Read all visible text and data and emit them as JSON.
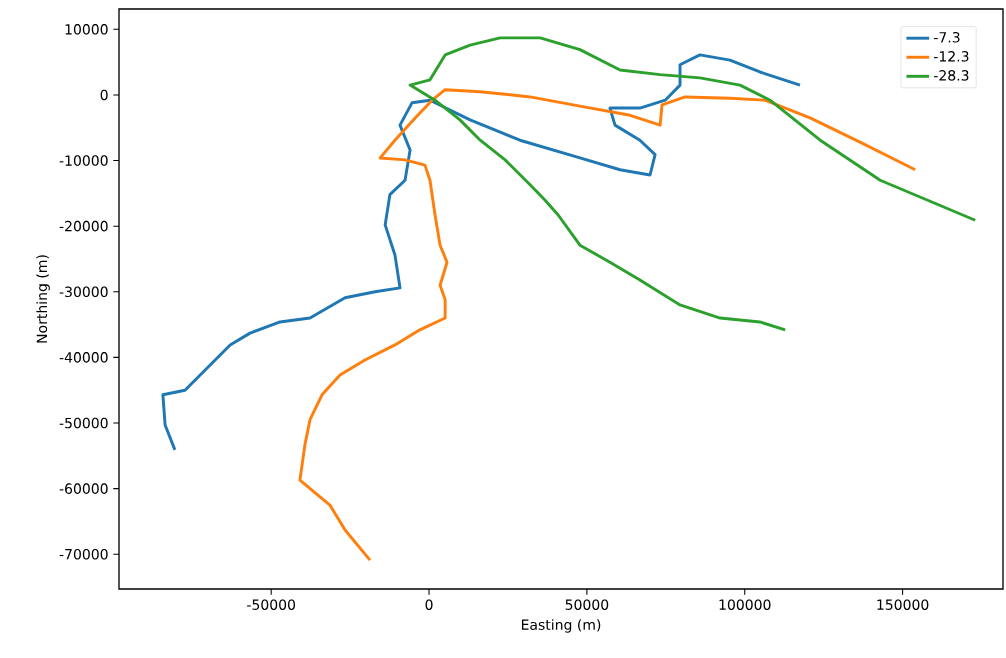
{
  "chart_data": {
    "type": "line",
    "xlabel": "Easting (m)",
    "ylabel": "Northing (m)",
    "xlim": [
      -98200,
      181800
    ],
    "ylim": [
      -75300,
      13100
    ],
    "xticks": [
      -50000,
      0,
      50000,
      100000,
      150000
    ],
    "yticks": [
      -70000,
      -60000,
      -50000,
      -40000,
      -30000,
      -20000,
      -10000,
      0,
      10000
    ],
    "grid": false,
    "legend": "top right",
    "marker": "none",
    "line_style": "solid",
    "series": [
      {
        "name": "-7.3",
        "color": "#1f77b4",
        "x": [
          -80500,
          -83600,
          -84300,
          -77300,
          -69400,
          -63000,
          -56700,
          -47200,
          -37700,
          -26600,
          -17100,
          -9200,
          -10800,
          -13900,
          -12400,
          -7600,
          -6000,
          -9200,
          -5400,
          300,
          13000,
          28800,
          47800,
          60500,
          70000,
          71600,
          66800,
          58900,
          57300,
          66800,
          74800,
          79500,
          79500,
          85800,
          95300,
          104800,
          117500
        ],
        "values": [
          -54100,
          -50300,
          -45700,
          -45000,
          -41200,
          -38100,
          -36300,
          -34600,
          -34000,
          -30900,
          -30000,
          -29400,
          -24400,
          -19800,
          -15200,
          -13000,
          -8400,
          -4600,
          -1200,
          -800,
          -3800,
          -6900,
          -9600,
          -11400,
          -12200,
          -9100,
          -6900,
          -4600,
          -2000,
          -2000,
          -800,
          1500,
          4600,
          6100,
          5300,
          3500,
          1500
        ]
      },
      {
        "name": "-12.3",
        "color": "#ff7f0e",
        "x": [
          -18700,
          -26600,
          -31400,
          -40900,
          -39300,
          -37700,
          -33900,
          -28200,
          -20300,
          -10800,
          -2900,
          5100,
          5100,
          3500,
          5700,
          3500,
          1900,
          300,
          -1300,
          -7600,
          -15500,
          -10800,
          -4400,
          1000,
          5100,
          16200,
          32000,
          47800,
          63700,
          73200,
          73800,
          81100,
          95300,
          106400,
          120700,
          136500,
          154000
        ],
        "values": [
          -70900,
          -66300,
          -62500,
          -58700,
          -53300,
          -49500,
          -45700,
          -42700,
          -40400,
          -38100,
          -35800,
          -34000,
          -31200,
          -29000,
          -25500,
          -22900,
          -18300,
          -13000,
          -10700,
          -9900,
          -9600,
          -6900,
          -3500,
          -800,
          800,
          500,
          -300,
          -1700,
          -3100,
          -4600,
          -1500,
          -300,
          -500,
          -800,
          -3500,
          -7200,
          -11400
        ]
      },
      {
        "name": "-28.3",
        "color": "#2ca02c",
        "x": [
          112800,
          104800,
          92200,
          79500,
          66800,
          57300,
          47800,
          40900,
          36700,
          32000,
          24100,
          16200,
          9800,
          1900,
          -6000,
          300,
          5100,
          13000,
          22500,
          35200,
          47800,
          60500,
          73200,
          85800,
          98500,
          108000,
          123900,
          142900,
          173000
        ],
        "values": [
          -35800,
          -34600,
          -34000,
          -32000,
          -28200,
          -25500,
          -22900,
          -18300,
          -16000,
          -13700,
          -9900,
          -6900,
          -3800,
          -800,
          1500,
          2300,
          6100,
          7600,
          8700,
          8700,
          6900,
          3800,
          3100,
          2600,
          1500,
          -800,
          -6900,
          -13000,
          -19100
        ]
      }
    ]
  }
}
